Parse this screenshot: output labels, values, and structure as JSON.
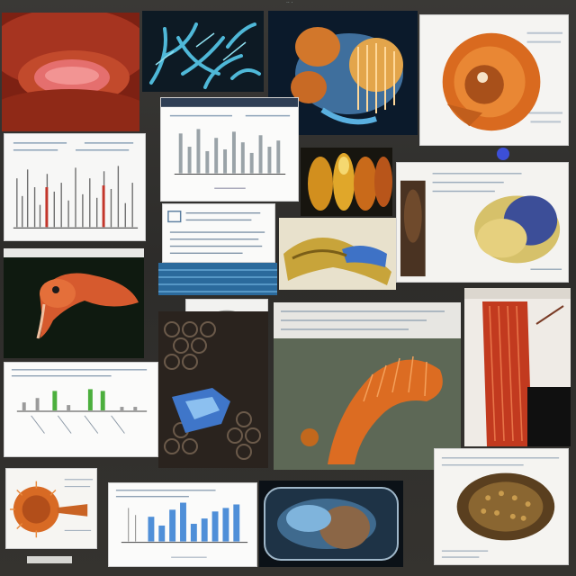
{
  "collage": {
    "background": "#2d2c2a",
    "tiles": [
      {
        "id": "lips",
        "subject": "red-lips-closeup"
      },
      {
        "id": "blue-coral",
        "subject": "blue-branching-structure"
      },
      {
        "id": "hydra",
        "subject": "orange-blue-organism"
      },
      {
        "id": "orange-shell",
        "subject": "orange-spiral-shell-diagram"
      },
      {
        "id": "bar-doc-left",
        "subject": "bar-chart-document"
      },
      {
        "id": "bar-doc-center",
        "subject": "bar-chart-document"
      },
      {
        "id": "text-card",
        "subject": "small-text-card"
      },
      {
        "id": "blue-strip",
        "subject": "blue-pattern-strip"
      },
      {
        "id": "yellow-orange",
        "subject": "yellow-orange-forms"
      },
      {
        "id": "yellow-limb",
        "subject": "yellow-blue-limb"
      },
      {
        "id": "cocoon-doc",
        "subject": "yellow-cocoon-diagram"
      },
      {
        "id": "bird-head",
        "subject": "pink-bird-head"
      },
      {
        "id": "grey-sphere",
        "subject": "grey-textured-sphere"
      },
      {
        "id": "honeycomb",
        "subject": "honeycomb-with-blue-form"
      },
      {
        "id": "orange-tendril",
        "subject": "orange-ribbed-tendril"
      },
      {
        "id": "muscle",
        "subject": "red-muscle-fibres"
      },
      {
        "id": "green-chart",
        "subject": "green-bar-chart"
      },
      {
        "id": "sunflower",
        "subject": "orange-spiny-creature"
      },
      {
        "id": "blue-chart",
        "subject": "blue-bar-chart"
      },
      {
        "id": "glass-dish",
        "subject": "blue-glass-dish"
      },
      {
        "id": "brown-seed",
        "subject": "brown-textured-seed"
      }
    ],
    "colors": {
      "orange": "#d9641e",
      "red": "#b3321f",
      "blue": "#4a8ed6",
      "chart_blue": "#4f8fd8",
      "chart_green": "#4caf3d",
      "paper": "#f3f3f1"
    }
  }
}
